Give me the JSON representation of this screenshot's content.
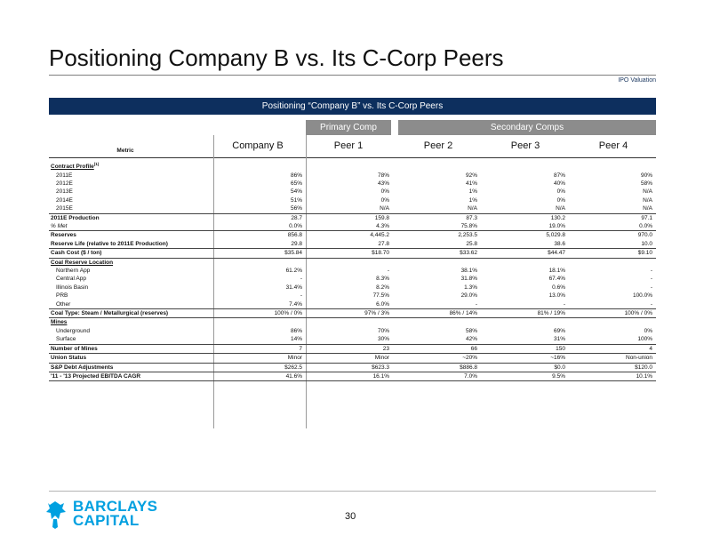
{
  "page": {
    "title": "Positioning Company B vs. Its C-Corp Peers",
    "section": "IPO Valuation",
    "banner": "Positioning “Company B” vs. Its C-Corp Peers",
    "page_number": "30"
  },
  "groups": {
    "primary": "Primary Comp",
    "secondary": "Secondary Comps"
  },
  "columns": {
    "metric": "Metric",
    "company": "Company B",
    "peer1": "Peer 1",
    "peer2": "Peer 2",
    "peer3": "Peer 3",
    "peer4": "Peer 4"
  },
  "logo": {
    "line1": "BARCLAYS",
    "line2": "CAPITAL",
    "brand_color": "#00a0e0"
  },
  "colors": {
    "banner": "#0d2f5e",
    "group_header": "#8c8c8c"
  },
  "rows": [
    {
      "metric": "Contract Profile",
      "sup": "(1)",
      "style": "bold-u",
      "values": [
        "",
        "",
        "",
        "",
        ""
      ]
    },
    {
      "metric": "2011E",
      "style": "indent",
      "values": [
        "86%",
        "78%",
        "92%",
        "87%",
        "90%"
      ]
    },
    {
      "metric": "2012E",
      "style": "indent",
      "values": [
        "65%",
        "43%",
        "41%",
        "40%",
        "58%"
      ]
    },
    {
      "metric": "2013E",
      "style": "indent",
      "values": [
        "54%",
        "0%",
        "1%",
        "0%",
        "N/A"
      ]
    },
    {
      "metric": "2014E",
      "style": "indent",
      "values": [
        "51%",
        "0%",
        "1%",
        "0%",
        "N/A"
      ]
    },
    {
      "metric": "2015E",
      "style": "indent sep",
      "values": [
        "56%",
        "N/A",
        "N/A",
        "N/A",
        "N/A"
      ]
    },
    {
      "metric": "2011E Production",
      "style": "bold",
      "values": [
        "28.7",
        "159.8",
        "87.3",
        "130.2",
        "97.1"
      ]
    },
    {
      "metric": "% Met",
      "style": "ital sep",
      "values": [
        "0.0%",
        "4.3%",
        "75.8%",
        "19.0%",
        "0.0%"
      ]
    },
    {
      "metric": "Reserves",
      "style": "bold",
      "values": [
        "856.8",
        "4,445.2",
        "2,253.5",
        "5,029.8",
        "970.0"
      ]
    },
    {
      "metric": "Reserve Life (relative to 2011E Production)",
      "style": "bold sep",
      "values": [
        "29.8",
        "27.8",
        "25.8",
        "38.6",
        "10.0"
      ]
    },
    {
      "metric": "Cash Cost ($ / ton)",
      "style": "bold sep",
      "values": [
        "$35.84",
        "$18.70",
        "$33.62",
        "$44.47",
        "$9.10"
      ]
    },
    {
      "metric": "Coal Reserve Location",
      "style": "bold-u",
      "values": [
        "",
        "",
        "",
        "",
        ""
      ]
    },
    {
      "metric": "Northern App",
      "style": "indent",
      "values": [
        "61.2%",
        "-",
        "38.1%",
        "18.1%",
        "-"
      ]
    },
    {
      "metric": "Central App",
      "style": "indent",
      "values": [
        "-",
        "8.3%",
        "31.8%",
        "67.4%",
        "-"
      ]
    },
    {
      "metric": "Illinois Basin",
      "style": "indent",
      "values": [
        "31.4%",
        "8.2%",
        "1.3%",
        "0.6%",
        "-"
      ]
    },
    {
      "metric": "PRB",
      "style": "indent",
      "values": [
        "-",
        "77.5%",
        "29.0%",
        "13.0%",
        "100.0%"
      ]
    },
    {
      "metric": "Other",
      "style": "indent sep",
      "values": [
        "7.4%",
        "6.0%",
        "-",
        "-",
        "-"
      ]
    },
    {
      "metric": "Coal Type: Steam / Metallurgical (reserves)",
      "style": "bold sep",
      "values": [
        "100% / 0%",
        "97% / 3%",
        "86% / 14%",
        "81% / 19%",
        "100% / 0%"
      ]
    },
    {
      "metric": "Mines",
      "style": "bold-u",
      "values": [
        "",
        "",
        "",
        "",
        ""
      ]
    },
    {
      "metric": "Underground",
      "style": "indent",
      "values": [
        "86%",
        "70%",
        "58%",
        "69%",
        "0%"
      ]
    },
    {
      "metric": "Surface",
      "style": "indent sep",
      "values": [
        "14%",
        "30%",
        "42%",
        "31%",
        "100%"
      ]
    },
    {
      "metric": "Number of Mines",
      "style": "bold sep",
      "values": [
        "7",
        "23",
        "66",
        "150",
        "4"
      ]
    },
    {
      "metric": "Union Status",
      "style": "bold sep",
      "values": [
        "Minor",
        "Minor",
        "~20%",
        "~16%",
        "Non-union"
      ]
    },
    {
      "metric": "S&P Debt Adjustments",
      "style": "bold sep",
      "values": [
        "$262.5",
        "$623.3",
        "$886.8",
        "$0.0",
        "$120.0"
      ]
    },
    {
      "metric": "'11 - '13 Projected EBITDA CAGR",
      "style": "bold sep",
      "values": [
        "41.6%",
        "16.1%",
        "7.0%",
        "9.5%",
        "10.1%"
      ]
    }
  ]
}
